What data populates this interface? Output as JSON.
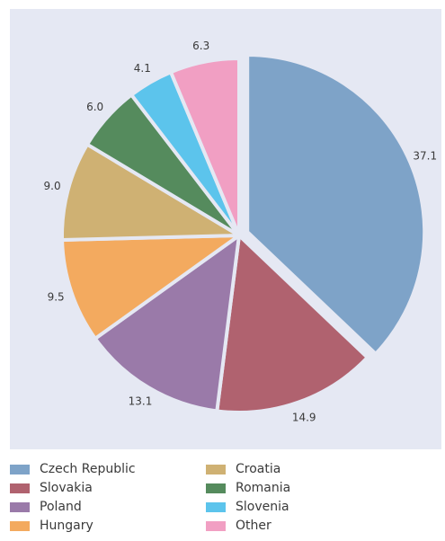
{
  "chart_data": {
    "type": "pie",
    "title": "",
    "unit": "%",
    "slices": [
      {
        "name": "Czech Republic",
        "value": 37.1,
        "label": "37.1",
        "color": "#7ea3c8",
        "exploded": true
      },
      {
        "name": "Slovakia",
        "value": 14.9,
        "label": "14.9",
        "color": "#b0626f",
        "exploded": false
      },
      {
        "name": "Poland",
        "value": 13.1,
        "label": "13.1",
        "color": "#9a7aa9",
        "exploded": false
      },
      {
        "name": "Hungary",
        "value": 9.5,
        "label": "9.5",
        "color": "#f3aa5f",
        "exploded": false
      },
      {
        "name": "Croatia",
        "value": 9.0,
        "label": "9.0",
        "color": "#cfb173",
        "exploded": false
      },
      {
        "name": "Romania",
        "value": 6.0,
        "label": "6.0",
        "color": "#558b5d",
        "exploded": false
      },
      {
        "name": "Slovenia",
        "value": 4.1,
        "label": "4.1",
        "color": "#5cc4ec",
        "exploded": false
      },
      {
        "name": "Other",
        "value": 6.3,
        "label": "6.3",
        "color": "#f19fc3",
        "exploded": false
      }
    ],
    "legend_position": "bottom",
    "background_color": "#e5e8f3"
  }
}
